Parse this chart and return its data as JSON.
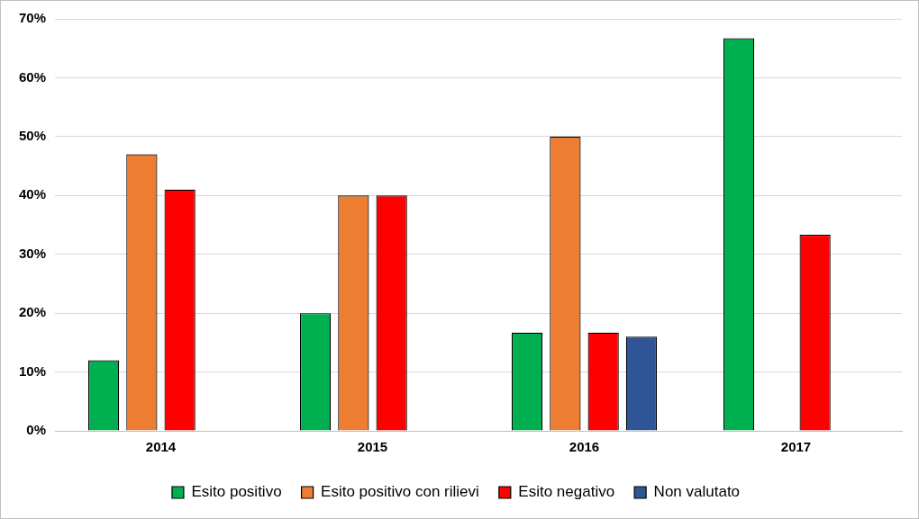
{
  "chart_data": {
    "type": "bar",
    "categories": [
      "2014",
      "2015",
      "2016",
      "2017"
    ],
    "series": [
      {
        "name": "Esito positivo",
        "color": "#00b050",
        "values": [
          12,
          20,
          16.7,
          66.7
        ]
      },
      {
        "name": "Esito positivo con rilievi",
        "color": "#ed7d31",
        "values": [
          47,
          40,
          50,
          null
        ]
      },
      {
        "name": "Esito negativo",
        "color": "#ff0000",
        "values": [
          41,
          40,
          16.7,
          33.3
        ]
      },
      {
        "name": "Non valutato",
        "color": "#2f5597",
        "values": [
          null,
          null,
          16,
          null
        ]
      }
    ],
    "ylim": [
      0,
      70
    ],
    "yticks": [
      {
        "value": 0,
        "label": "0%"
      },
      {
        "value": 10,
        "label": "10%"
      },
      {
        "value": 20,
        "label": "20%"
      },
      {
        "value": 30,
        "label": "30%"
      },
      {
        "value": 40,
        "label": "40%"
      },
      {
        "value": 50,
        "label": "50%"
      },
      {
        "value": 60,
        "label": "60%"
      },
      {
        "value": 70,
        "label": "70%"
      }
    ],
    "grid": "y",
    "legend": "bottom"
  }
}
